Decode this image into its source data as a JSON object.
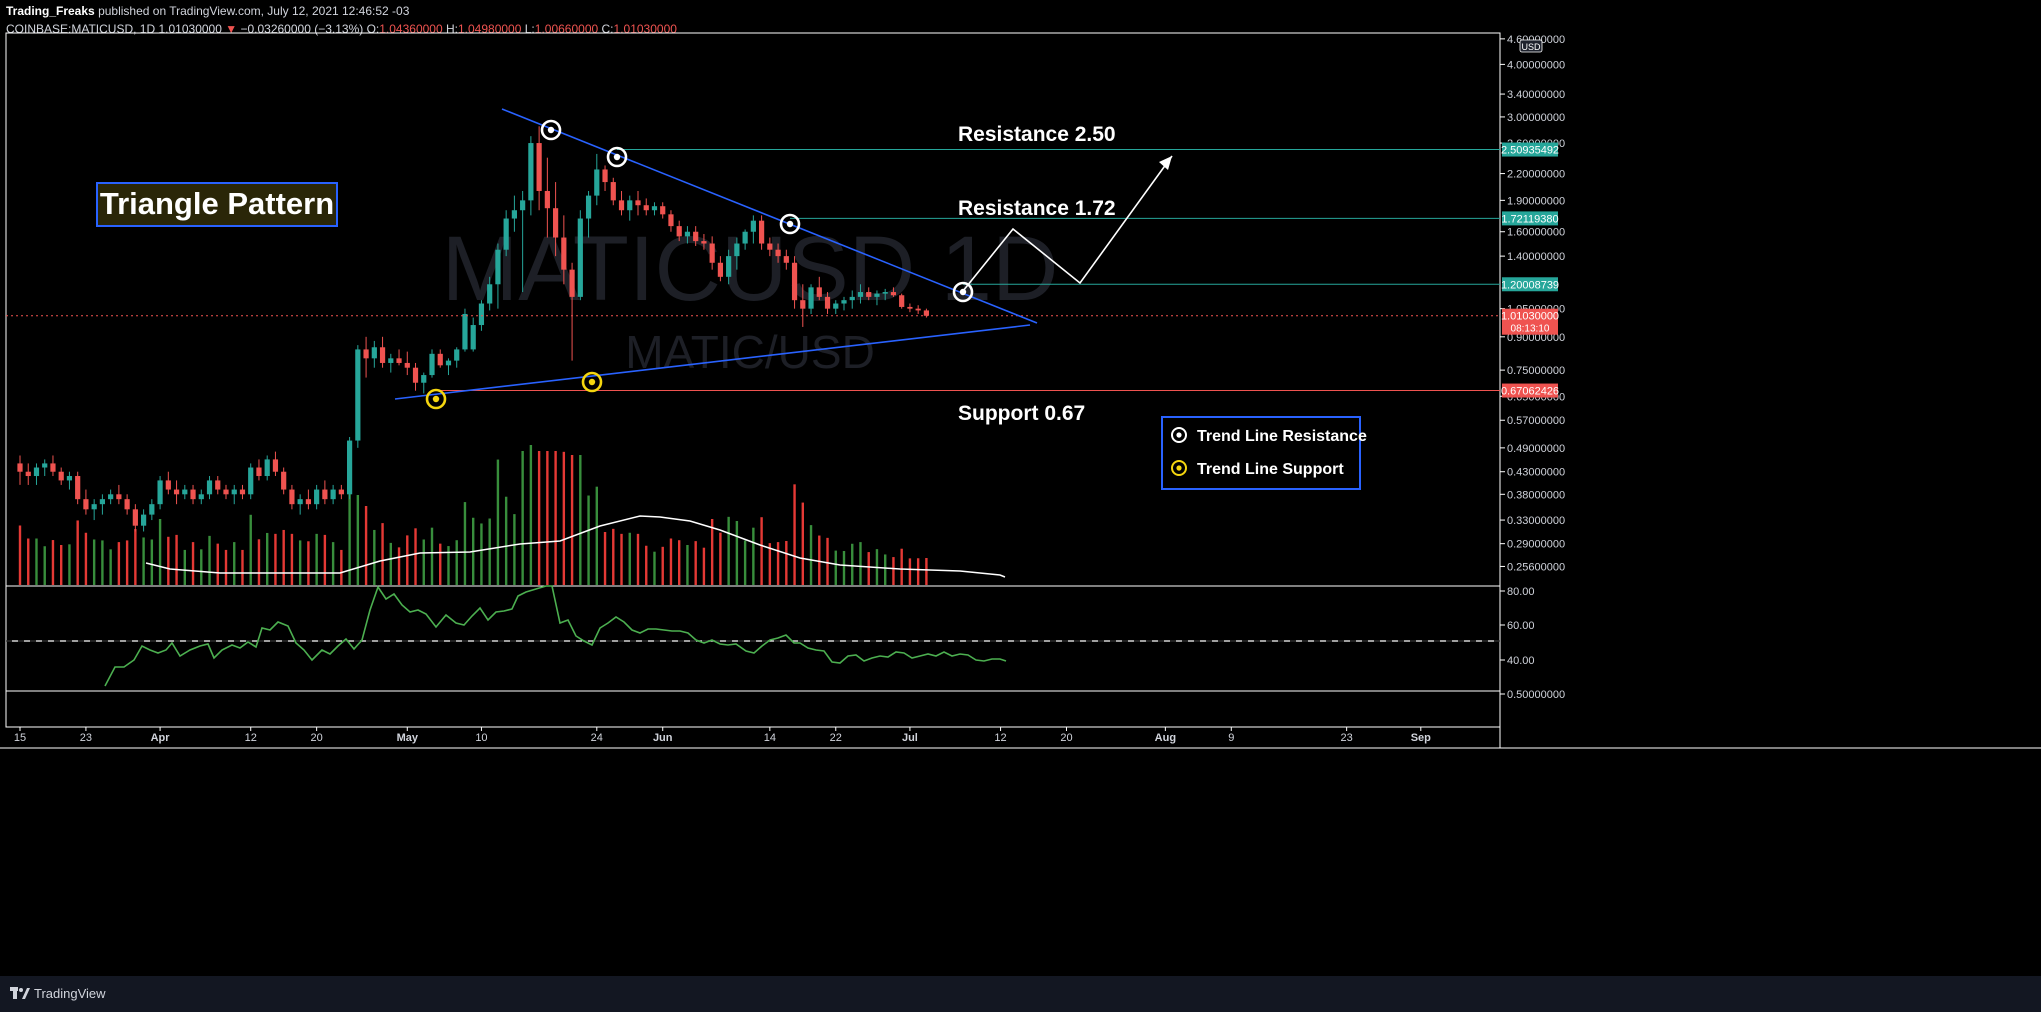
{
  "header": {
    "publisher": "Trading_Freaks",
    "published_text": "published on TradingView.com, July 12, 2021 12:46:52 -03",
    "symbol": "COINBASE:MATICUSD, 1D",
    "last": "1.01030000",
    "change_arrow": "▼",
    "change": "−0.03260000 (−3.13%)",
    "o_label": "O:",
    "o": "1.04360000",
    "h_label": "H:",
    "h": "1.04980000",
    "l_label": "L:",
    "l": "1.00660000",
    "c_label": "C:",
    "c": "1.01030000"
  },
  "footer": {
    "brand": "TradingView",
    "logo_icon": "tradingview-logo-icon"
  },
  "chart_data": {
    "type": "candlestick",
    "title": "Triangle Pattern",
    "watermark": {
      "symbol": "MATICUSD",
      "interval": "1D",
      "pair": "MATIC/USD"
    },
    "currency_badge": "USD",
    "scale": "log",
    "ylim": [
      0.23,
      4.75
    ],
    "y_ticks": [
      4.6,
      4.0,
      3.4,
      3.0,
      2.6,
      2.2,
      1.9,
      1.6,
      1.4,
      1.05,
      0.9,
      0.75,
      0.65,
      0.57,
      0.49,
      0.43,
      0.38,
      0.33,
      0.29,
      0.256
    ],
    "y_tick_labels": [
      "4.60000000",
      "4.00000000",
      "3.40000000",
      "3.00000000",
      "2.60000000",
      "2.20000000",
      "1.90000000",
      "1.60000000",
      "1.40000000",
      "1.05000000",
      "0.90000000",
      "0.75000000",
      "0.65000000",
      "0.57000000",
      "0.49000000",
      "0.43000000",
      "0.38000000",
      "0.33000000",
      "0.29000000",
      "0.25600000"
    ],
    "x_labels": [
      {
        "label": "15",
        "day": 0
      },
      {
        "label": "23",
        "day": 8
      },
      {
        "label": "Apr",
        "day": 17
      },
      {
        "label": "12",
        "day": 28
      },
      {
        "label": "20",
        "day": 36
      },
      {
        "label": "May",
        "day": 47
      },
      {
        "label": "10",
        "day": 56
      },
      {
        "label": "24",
        "day": 70
      },
      {
        "label": "Jun",
        "day": 78
      },
      {
        "label": "14",
        "day": 91
      },
      {
        "label": "22",
        "day": 99
      },
      {
        "label": "Jul",
        "day": 108
      },
      {
        "label": "12",
        "day": 119
      },
      {
        "label": "20",
        "day": 127
      },
      {
        "label": "Aug",
        "day": 139
      },
      {
        "label": "9",
        "day": 147
      },
      {
        "label": "23",
        "day": 161
      },
      {
        "label": "Sep",
        "day": 170
      }
    ],
    "candles": [
      [
        0.45,
        0.47,
        0.4,
        0.43
      ],
      [
        0.43,
        0.45,
        0.4,
        0.42
      ],
      [
        0.42,
        0.45,
        0.4,
        0.44
      ],
      [
        0.44,
        0.46,
        0.42,
        0.45
      ],
      [
        0.45,
        0.47,
        0.42,
        0.43
      ],
      [
        0.43,
        0.44,
        0.4,
        0.41
      ],
      [
        0.41,
        0.43,
        0.39,
        0.42
      ],
      [
        0.42,
        0.43,
        0.36,
        0.37
      ],
      [
        0.37,
        0.39,
        0.34,
        0.35
      ],
      [
        0.35,
        0.37,
        0.33,
        0.36
      ],
      [
        0.36,
        0.38,
        0.34,
        0.37
      ],
      [
        0.37,
        0.39,
        0.36,
        0.38
      ],
      [
        0.38,
        0.4,
        0.36,
        0.37
      ],
      [
        0.37,
        0.38,
        0.34,
        0.35
      ],
      [
        0.35,
        0.36,
        0.31,
        0.32
      ],
      [
        0.32,
        0.35,
        0.31,
        0.34
      ],
      [
        0.34,
        0.37,
        0.33,
        0.36
      ],
      [
        0.36,
        0.42,
        0.35,
        0.41
      ],
      [
        0.41,
        0.43,
        0.38,
        0.39
      ],
      [
        0.39,
        0.41,
        0.36,
        0.38
      ],
      [
        0.38,
        0.4,
        0.37,
        0.39
      ],
      [
        0.39,
        0.4,
        0.36,
        0.37
      ],
      [
        0.37,
        0.39,
        0.36,
        0.38
      ],
      [
        0.38,
        0.42,
        0.37,
        0.41
      ],
      [
        0.41,
        0.42,
        0.38,
        0.39
      ],
      [
        0.39,
        0.4,
        0.37,
        0.38
      ],
      [
        0.38,
        0.4,
        0.36,
        0.39
      ],
      [
        0.39,
        0.4,
        0.37,
        0.38
      ],
      [
        0.38,
        0.45,
        0.37,
        0.44
      ],
      [
        0.44,
        0.46,
        0.41,
        0.42
      ],
      [
        0.42,
        0.47,
        0.41,
        0.46
      ],
      [
        0.46,
        0.48,
        0.42,
        0.43
      ],
      [
        0.43,
        0.44,
        0.38,
        0.39
      ],
      [
        0.39,
        0.4,
        0.35,
        0.36
      ],
      [
        0.36,
        0.38,
        0.34,
        0.37
      ],
      [
        0.37,
        0.39,
        0.35,
        0.36
      ],
      [
        0.36,
        0.4,
        0.35,
        0.39
      ],
      [
        0.39,
        0.41,
        0.36,
        0.37
      ],
      [
        0.37,
        0.4,
        0.36,
        0.39
      ],
      [
        0.39,
        0.4,
        0.37,
        0.38
      ],
      [
        0.38,
        0.52,
        0.37,
        0.51
      ],
      [
        0.51,
        0.86,
        0.49,
        0.84
      ],
      [
        0.84,
        0.9,
        0.72,
        0.8
      ],
      [
        0.8,
        0.88,
        0.76,
        0.85
      ],
      [
        0.85,
        0.9,
        0.76,
        0.78
      ],
      [
        0.78,
        0.82,
        0.74,
        0.8
      ],
      [
        0.8,
        0.84,
        0.77,
        0.78
      ],
      [
        0.78,
        0.83,
        0.73,
        0.76
      ],
      [
        0.76,
        0.78,
        0.67,
        0.7
      ],
      [
        0.7,
        0.74,
        0.66,
        0.73
      ],
      [
        0.73,
        0.84,
        0.72,
        0.82
      ],
      [
        0.82,
        0.84,
        0.76,
        0.77
      ],
      [
        0.77,
        0.8,
        0.73,
        0.79
      ],
      [
        0.79,
        0.85,
        0.76,
        0.84
      ],
      [
        0.84,
        1.05,
        0.83,
        1.02
      ],
      [
        0.84,
        1.0,
        0.83,
        0.96
      ],
      [
        0.96,
        1.1,
        0.93,
        1.08
      ],
      [
        1.08,
        1.25,
        1.04,
        1.2
      ],
      [
        1.2,
        1.5,
        1.05,
        1.45
      ],
      [
        1.45,
        1.8,
        1.4,
        1.72
      ],
      [
        1.72,
        1.95,
        1.6,
        1.8
      ],
      [
        1.8,
        2.0,
        1.15,
        1.9
      ],
      [
        1.9,
        2.7,
        1.75,
        2.6
      ],
      [
        2.6,
        2.85,
        1.8,
        2.0
      ],
      [
        2.0,
        2.4,
        1.55,
        1.82
      ],
      [
        1.82,
        2.1,
        1.4,
        1.55
      ],
      [
        1.55,
        1.75,
        1.2,
        1.3
      ],
      [
        1.3,
        1.35,
        0.79,
        1.12
      ],
      [
        1.12,
        1.8,
        1.1,
        1.72
      ],
      [
        1.72,
        2.0,
        1.55,
        1.95
      ],
      [
        1.95,
        2.45,
        1.85,
        2.25
      ],
      [
        2.25,
        2.3,
        2.0,
        2.1
      ],
      [
        2.1,
        2.15,
        1.85,
        1.9
      ],
      [
        1.9,
        2.0,
        1.75,
        1.8
      ],
      [
        1.8,
        1.95,
        1.7,
        1.9
      ],
      [
        1.9,
        2.0,
        1.75,
        1.85
      ],
      [
        1.85,
        1.92,
        1.75,
        1.8
      ],
      [
        1.8,
        1.88,
        1.75,
        1.84
      ],
      [
        1.84,
        1.88,
        1.72,
        1.76
      ],
      [
        1.76,
        1.8,
        1.6,
        1.65
      ],
      [
        1.65,
        1.7,
        1.52,
        1.56
      ],
      [
        1.56,
        1.65,
        1.5,
        1.6
      ],
      [
        1.6,
        1.65,
        1.48,
        1.52
      ],
      [
        1.52,
        1.58,
        1.45,
        1.5
      ],
      [
        1.5,
        1.56,
        1.3,
        1.35
      ],
      [
        1.35,
        1.4,
        1.22,
        1.25
      ],
      [
        1.25,
        1.45,
        1.2,
        1.4
      ],
      [
        1.4,
        1.55,
        1.3,
        1.5
      ],
      [
        1.5,
        1.62,
        1.45,
        1.6
      ],
      [
        1.6,
        1.75,
        1.5,
        1.7
      ],
      [
        1.7,
        1.75,
        1.45,
        1.5
      ],
      [
        1.5,
        1.55,
        1.4,
        1.45
      ],
      [
        1.45,
        1.5,
        1.35,
        1.4
      ],
      [
        1.4,
        1.45,
        1.3,
        1.35
      ],
      [
        1.35,
        1.4,
        1.05,
        1.1
      ],
      [
        1.1,
        1.2,
        0.95,
        1.05
      ],
      [
        1.05,
        1.2,
        1.02,
        1.18
      ],
      [
        1.18,
        1.25,
        1.1,
        1.12
      ],
      [
        1.12,
        1.15,
        1.02,
        1.05
      ],
      [
        1.05,
        1.1,
        1.02,
        1.08
      ],
      [
        1.08,
        1.12,
        1.04,
        1.1
      ],
      [
        1.1,
        1.16,
        1.05,
        1.12
      ],
      [
        1.12,
        1.2,
        1.08,
        1.15
      ],
      [
        1.15,
        1.18,
        1.1,
        1.12
      ],
      [
        1.12,
        1.16,
        1.07,
        1.14
      ],
      [
        1.14,
        1.17,
        1.1,
        1.15
      ],
      [
        1.15,
        1.18,
        1.12,
        1.13
      ],
      [
        1.13,
        1.14,
        1.05,
        1.06
      ],
      [
        1.06,
        1.08,
        1.03,
        1.05
      ],
      [
        1.05,
        1.07,
        1.02,
        1.04
      ],
      [
        1.04,
        1.05,
        1.0,
        1.01
      ]
    ],
    "annotations": {
      "resistance_labels": [
        "Resistance 2.50",
        "Resistance 1.72"
      ],
      "support_label": "Support 0.67",
      "price_tags": [
        {
          "text": "2.50935492",
          "price": 2.50935492,
          "color": "#26a69a"
        },
        {
          "text": "1.72119380",
          "price": 1.7211938,
          "color": "#26a69a"
        },
        {
          "text": "1.20008739",
          "price": 1.20008739,
          "color": "#26a69a"
        },
        {
          "text": "1.01030000",
          "price": 1.0103,
          "color": "#ef5350"
        },
        {
          "text": "0.67062426",
          "price": 0.67062426,
          "color": "#ef5350"
        }
      ],
      "countdown": "08:13:10",
      "legend": [
        {
          "label": "Trend Line Resistance",
          "marker": "white-circle-marker-icon",
          "color": "#ffffff"
        },
        {
          "label": "Trend Line Support",
          "marker": "yellow-circle-marker-icon",
          "color": "#f5d60f"
        }
      ]
    },
    "oscillator": {
      "y_ticks": [
        80,
        60,
        40
      ],
      "y_tick_labels": [
        "80.00",
        "60.00",
        "40.00"
      ],
      "extra_label": "0.50000000",
      "series_color": "#4caf50"
    },
    "colors": {
      "up": "#26a69a",
      "down": "#ef5350",
      "volume_up": "#388e3c",
      "volume_down": "#e53935",
      "trendline": "#2962ff",
      "box_border": "#2962ff",
      "box_fill": "#2a2608"
    }
  }
}
